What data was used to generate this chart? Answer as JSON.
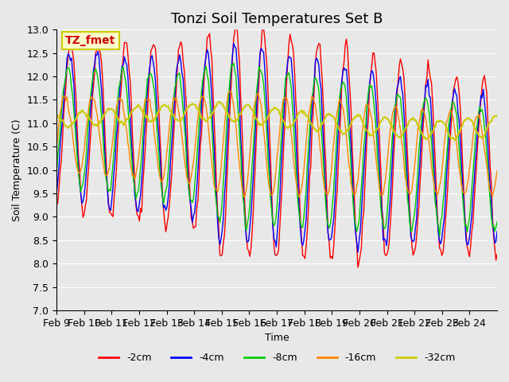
{
  "title": "Tonzi Soil Temperatures Set B",
  "xlabel": "Time",
  "ylabel": "Soil Temperature (C)",
  "ylim": [
    7.0,
    13.0
  ],
  "yticks": [
    7.0,
    7.5,
    8.0,
    8.5,
    9.0,
    9.5,
    10.0,
    10.5,
    11.0,
    11.5,
    12.0,
    12.5,
    13.0
  ],
  "xtick_labels": [
    "Feb 9",
    "Feb 10",
    "Feb 11",
    "Feb 12",
    "Feb 13",
    "Feb 14",
    "Feb 15",
    "Feb 16",
    "Feb 17",
    "Feb 18",
    "Feb 19",
    "Feb 20",
    "Feb 21",
    "Feb 22",
    "Feb 23",
    "Feb 24"
  ],
  "colors": {
    "-2cm": "#FF0000",
    "-4cm": "#0000FF",
    "-8cm": "#00CC00",
    "-16cm": "#FF8800",
    "-32cm": "#CCCC00"
  },
  "legend_labels": [
    "-2cm",
    "-4cm",
    "-8cm",
    "-16cm",
    "-32cm"
  ],
  "annotation_text": "TZ_fmet",
  "annotation_bg": "#FFFFCC",
  "annotation_border": "#CCCC00",
  "background_color": "#E8E8E8",
  "title_fontsize": 13,
  "axis_fontsize": 9,
  "legend_fontsize": 9
}
